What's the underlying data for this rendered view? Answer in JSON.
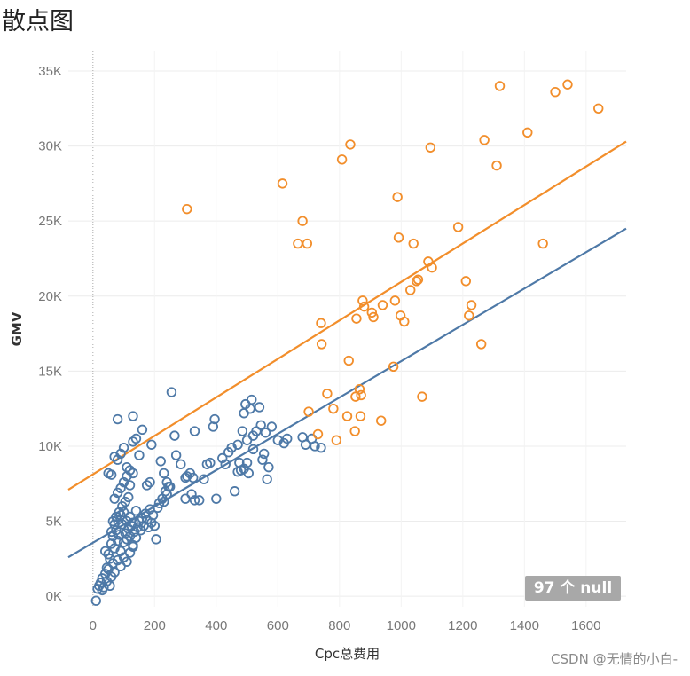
{
  "title": "散点图",
  "null_badge": "97 个 null",
  "watermark": "CSDN @无情的小白-",
  "chart_data": {
    "type": "scatter",
    "xlabel": "Cpc总费用",
    "ylabel": "GMV",
    "xlim": [
      -80,
      1730
    ],
    "ylim": [
      -700,
      36300
    ],
    "x_ticks": [
      "0",
      "200",
      "400",
      "600",
      "800",
      "1000",
      "1200",
      "1400",
      "1600"
    ],
    "x_tick_values": [
      0,
      200,
      400,
      600,
      800,
      1000,
      1200,
      1400,
      1600
    ],
    "y_ticks": [
      "0K",
      "5K",
      "10K",
      "15K",
      "20K",
      "25K",
      "30K",
      "35K"
    ],
    "y_tick_values": [
      0,
      5000,
      10000,
      15000,
      20000,
      25000,
      30000,
      35000
    ],
    "grid": true,
    "series": [
      {
        "color": "#4e79a7",
        "trend_line": [
          [
            -80,
            2600
          ],
          [
            1730,
            24500
          ]
        ],
        "points": [
          [
            10,
            -300
          ],
          [
            15,
            500
          ],
          [
            20,
            700
          ],
          [
            25,
            900
          ],
          [
            30,
            1200
          ],
          [
            35,
            600
          ],
          [
            40,
            1500
          ],
          [
            45,
            1000
          ],
          [
            50,
            1800
          ],
          [
            55,
            2500
          ],
          [
            60,
            1300
          ],
          [
            65,
            2200
          ],
          [
            70,
            1600
          ],
          [
            30,
            400
          ],
          [
            45,
            1900
          ],
          [
            55,
            700
          ],
          [
            40,
            3000
          ],
          [
            50,
            2800
          ],
          [
            60,
            3500
          ],
          [
            65,
            4000
          ],
          [
            70,
            3200
          ],
          [
            75,
            4400
          ],
          [
            80,
            3700
          ],
          [
            85,
            4100
          ],
          [
            90,
            3000
          ],
          [
            95,
            4800
          ],
          [
            100,
            3600
          ],
          [
            105,
            4200
          ],
          [
            110,
            3800
          ],
          [
            115,
            4500
          ],
          [
            120,
            4000
          ],
          [
            125,
            4700
          ],
          [
            130,
            3400
          ],
          [
            135,
            4300
          ],
          [
            140,
            3900
          ],
          [
            145,
            4600
          ],
          [
            150,
            5000
          ],
          [
            155,
            4400
          ],
          [
            160,
            5200
          ],
          [
            165,
            4700
          ],
          [
            170,
            5500
          ],
          [
            175,
            5100
          ],
          [
            180,
            4600
          ],
          [
            185,
            5800
          ],
          [
            190,
            4900
          ],
          [
            195,
            5400
          ],
          [
            200,
            4700
          ],
          [
            205,
            3800
          ],
          [
            210,
            5900
          ],
          [
            215,
            6200
          ],
          [
            60,
            4300
          ],
          [
            70,
            4800
          ],
          [
            80,
            5100
          ],
          [
            90,
            5400
          ],
          [
            100,
            5600
          ],
          [
            110,
            5000
          ],
          [
            120,
            5300
          ],
          [
            130,
            4900
          ],
          [
            140,
            5700
          ],
          [
            80,
            2400
          ],
          [
            90,
            2000
          ],
          [
            100,
            2600
          ],
          [
            110,
            2300
          ],
          [
            120,
            2900
          ],
          [
            130,
            3300
          ],
          [
            65,
            5000
          ],
          [
            75,
            5300
          ],
          [
            85,
            5600
          ],
          [
            95,
            6000
          ],
          [
            105,
            6300
          ],
          [
            115,
            6600
          ],
          [
            70,
            6500
          ],
          [
            80,
            6900
          ],
          [
            90,
            7200
          ],
          [
            100,
            7600
          ],
          [
            110,
            8000
          ],
          [
            120,
            8400
          ],
          [
            130,
            8200
          ],
          [
            60,
            8100
          ],
          [
            50,
            8200
          ],
          [
            70,
            9300
          ],
          [
            80,
            9100
          ],
          [
            90,
            9500
          ],
          [
            100,
            9900
          ],
          [
            110,
            8600
          ],
          [
            120,
            7400
          ],
          [
            130,
            10300
          ],
          [
            140,
            10500
          ],
          [
            150,
            9400
          ],
          [
            160,
            11100
          ],
          [
            80,
            11800
          ],
          [
            130,
            12000
          ],
          [
            175,
            7400
          ],
          [
            185,
            7600
          ],
          [
            190,
            10100
          ],
          [
            220,
            9000
          ],
          [
            230,
            8200
          ],
          [
            240,
            7600
          ],
          [
            250,
            7300
          ],
          [
            255,
            13600
          ],
          [
            265,
            10700
          ],
          [
            270,
            9400
          ],
          [
            285,
            8800
          ],
          [
            300,
            7900
          ],
          [
            305,
            8000
          ],
          [
            315,
            8200
          ],
          [
            325,
            7900
          ],
          [
            330,
            11000
          ],
          [
            345,
            6400
          ],
          [
            360,
            7800
          ],
          [
            370,
            8800
          ],
          [
            380,
            8900
          ],
          [
            390,
            11300
          ],
          [
            395,
            11800
          ],
          [
            400,
            6500
          ],
          [
            420,
            9200
          ],
          [
            430,
            8800
          ],
          [
            440,
            9600
          ],
          [
            450,
            9900
          ],
          [
            460,
            7000
          ],
          [
            470,
            10100
          ],
          [
            475,
            8900
          ],
          [
            480,
            8400
          ],
          [
            485,
            11000
          ],
          [
            490,
            12200
          ],
          [
            495,
            12800
          ],
          [
            500,
            10400
          ],
          [
            505,
            8200
          ],
          [
            510,
            12500
          ],
          [
            515,
            13100
          ],
          [
            520,
            10700
          ],
          [
            530,
            11000
          ],
          [
            540,
            12600
          ],
          [
            545,
            11400
          ],
          [
            550,
            9100
          ],
          [
            555,
            9500
          ],
          [
            560,
            10900
          ],
          [
            565,
            7800
          ],
          [
            570,
            8600
          ],
          [
            580,
            11300
          ],
          [
            600,
            10400
          ],
          [
            620,
            10200
          ],
          [
            630,
            10500
          ],
          [
            680,
            10600
          ],
          [
            690,
            10100
          ],
          [
            710,
            10500
          ],
          [
            720,
            10000
          ],
          [
            740,
            9900
          ],
          [
            300,
            6500
          ],
          [
            320,
            6800
          ],
          [
            330,
            6400
          ],
          [
            490,
            8500
          ],
          [
            470,
            8300
          ],
          [
            500,
            8900
          ],
          [
            520,
            9800
          ],
          [
            225,
            6500
          ],
          [
            235,
            7000
          ],
          [
            245,
            7300
          ],
          [
            230,
            6300
          ],
          [
            240,
            6800
          ]
        ]
      },
      {
        "color": "#f28e2b",
        "trend_line": [
          [
            -80,
            7100
          ],
          [
            1730,
            30300
          ]
        ],
        "points": [
          [
            305,
            25800
          ],
          [
            615,
            27500
          ],
          [
            665,
            23500
          ],
          [
            680,
            25000
          ],
          [
            695,
            23500
          ],
          [
            700,
            12300
          ],
          [
            730,
            10800
          ],
          [
            740,
            18200
          ],
          [
            742,
            16800
          ],
          [
            760,
            13500
          ],
          [
            780,
            12500
          ],
          [
            790,
            10400
          ],
          [
            808,
            29100
          ],
          [
            825,
            12000
          ],
          [
            830,
            15700
          ],
          [
            835,
            30100
          ],
          [
            850,
            11000
          ],
          [
            852,
            13300
          ],
          [
            855,
            18500
          ],
          [
            865,
            13800
          ],
          [
            868,
            12000
          ],
          [
            870,
            13400
          ],
          [
            875,
            19700
          ],
          [
            880,
            19300
          ],
          [
            905,
            18900
          ],
          [
            910,
            18600
          ],
          [
            935,
            11700
          ],
          [
            940,
            19400
          ],
          [
            975,
            15300
          ],
          [
            980,
            19700
          ],
          [
            988,
            26600
          ],
          [
            992,
            23900
          ],
          [
            998,
            18700
          ],
          [
            1010,
            18300
          ],
          [
            1030,
            20400
          ],
          [
            1040,
            23500
          ],
          [
            1050,
            21000
          ],
          [
            1055,
            21100
          ],
          [
            1068,
            13300
          ],
          [
            1088,
            22300
          ],
          [
            1095,
            29900
          ],
          [
            1100,
            21900
          ],
          [
            1185,
            24600
          ],
          [
            1210,
            21000
          ],
          [
            1220,
            18700
          ],
          [
            1228,
            19400
          ],
          [
            1260,
            16800
          ],
          [
            1270,
            30400
          ],
          [
            1310,
            28700
          ],
          [
            1320,
            34000
          ],
          [
            1410,
            30900
          ],
          [
            1460,
            23500
          ],
          [
            1500,
            33600
          ],
          [
            1540,
            34100
          ],
          [
            1640,
            32500
          ]
        ]
      }
    ]
  }
}
